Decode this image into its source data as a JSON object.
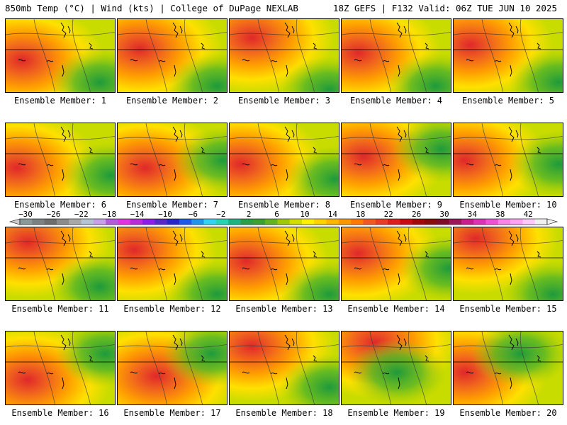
{
  "header": {
    "left": "850mb Temp (°C) | Wind (kts) | College of DuPage NEXLAB",
    "right": "18Z GEFS | F132 Valid: 06Z TUE JUN 10 2025"
  },
  "members": [
    {
      "label": "Ensemble Member: 1"
    },
    {
      "label": "Ensemble Member: 2"
    },
    {
      "label": "Ensemble Member: 3"
    },
    {
      "label": "Ensemble Member: 4"
    },
    {
      "label": "Ensemble Member: 5"
    },
    {
      "label": "Ensemble Member: 6"
    },
    {
      "label": "Ensemble Member: 7"
    },
    {
      "label": "Ensemble Member: 8"
    },
    {
      "label": "Ensemble Member: 9"
    },
    {
      "label": "Ensemble Member: 10"
    },
    {
      "label": "Ensemble Member: 11"
    },
    {
      "label": "Ensemble Member: 12"
    },
    {
      "label": "Ensemble Member: 13"
    },
    {
      "label": "Ensemble Member: 14"
    },
    {
      "label": "Ensemble Member: 15"
    },
    {
      "label": "Ensemble Member: 16"
    },
    {
      "label": "Ensemble Member: 17"
    },
    {
      "label": "Ensemble Member: 18"
    },
    {
      "label": "Ensemble Member: 19"
    },
    {
      "label": "Ensemble Member: 20"
    }
  ],
  "colorbar": {
    "ticks": [
      "-30",
      "-26",
      "-22",
      "-18",
      "-14",
      "-10",
      "-6",
      "-2",
      "2",
      "6",
      "10",
      "14",
      "18",
      "22",
      "26",
      "30",
      "34",
      "38",
      "42"
    ],
    "colors": [
      "#8a9a9a",
      "#7c8282",
      "#6e6e6e",
      "#8c8c8c",
      "#a8a8a8",
      "#b4c4d4",
      "#c8a0e8",
      "#b45adc",
      "#e132e6",
      "#be28dc",
      "#8c1ee6",
      "#5a28c8",
      "#2828c8",
      "#1e5ae6",
      "#1e96f0",
      "#32d2f0",
      "#28d2b4",
      "#1eb482",
      "#28a046",
      "#3ca032",
      "#64b41e",
      "#a0c80a",
      "#d2dc00",
      "#fff000",
      "#ffd200",
      "#ffb400",
      "#ff9600",
      "#ff7800",
      "#f05a1e",
      "#e63c28",
      "#dc1e1e",
      "#c80a14",
      "#a00a0a",
      "#8c0a0a",
      "#820a28",
      "#a0145a",
      "#c81e8c",
      "#dc32b4",
      "#f050d2",
      "#ff82e6",
      "#ffa0f0",
      "#ffc8fa",
      "#f0f0f0"
    ]
  }
}
